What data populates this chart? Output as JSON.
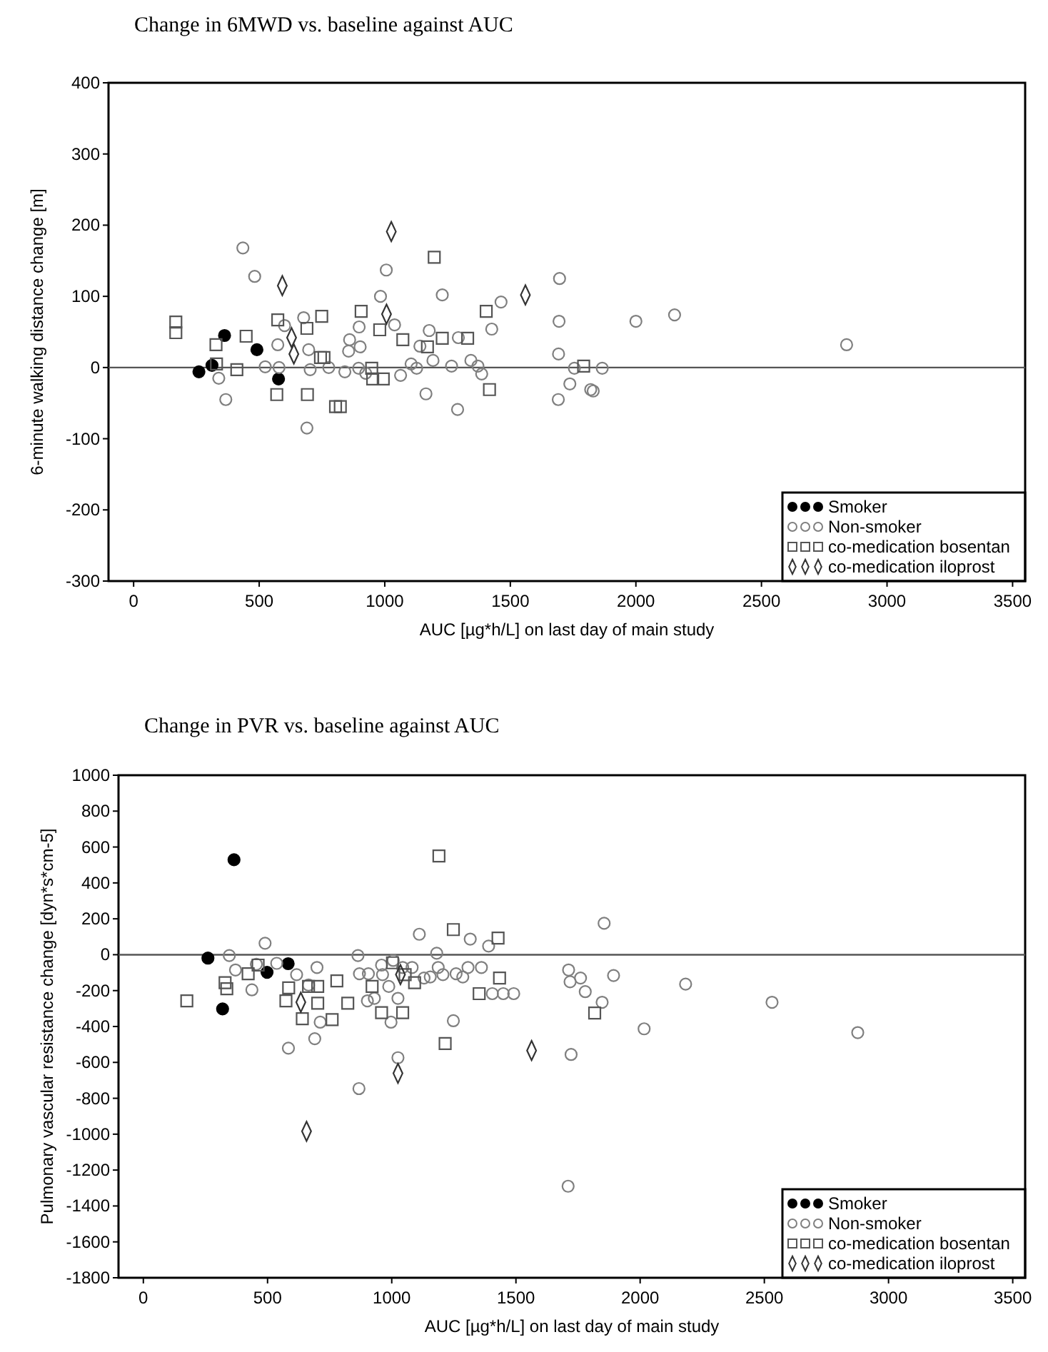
{
  "chart_data": [
    {
      "type": "scatter",
      "title": "Change in 6MWD vs. baseline against AUC",
      "xlabel": "AUC [µg*h/L] on last day of main study",
      "ylabel": "6-minute walking distance change [m]",
      "xlim": [
        -100,
        3550
      ],
      "ylim": [
        -300,
        400
      ],
      "xticks": [
        0,
        500,
        1000,
        1500,
        2000,
        2500,
        3000,
        3500
      ],
      "yticks": [
        -300,
        -200,
        -100,
        0,
        100,
        200,
        300,
        400
      ],
      "grid": false,
      "legend": "bottom right",
      "ref_lines": [
        {
          "axis": "y",
          "value": 0,
          "color": "#555555"
        }
      ],
      "series": [
        {
          "name": "Smoker",
          "color": "#000000",
          "marker": "circle",
          "x": [
            260,
            312,
            362,
            491,
            577
          ],
          "values": [
            -6,
            3,
            45,
            25,
            -16
          ]
        },
        {
          "name": "Non-smoker",
          "color": "#7f7f7f",
          "marker": "circle",
          "x": [
            435,
            482,
            367,
            339,
            524,
            574,
            579,
            601,
            677,
            697,
            703,
            690,
            777,
            841,
            860,
            856,
            902,
            898,
            896,
            924,
            983,
            1006,
            1039,
            1063,
            1105,
            1127,
            1140,
            1164,
            1177,
            1192,
            1229,
            1266,
            1290,
            1293,
            1343,
            1371,
            1386,
            1426,
            1463,
            1696,
            1694,
            2000,
            2154,
            2839,
            1692,
            1755,
            1866,
            1737,
            1820,
            1830,
            1691
          ],
          "values": [
            168,
            128,
            -45,
            -15,
            1,
            32,
            0,
            59,
            70,
            25,
            -3,
            -85,
            0,
            -6,
            39,
            23,
            29,
            57,
            -1,
            -8,
            100,
            137,
            60,
            -11,
            5,
            -1,
            30,
            -37,
            52,
            10,
            102,
            2,
            -59,
            42,
            10,
            2,
            -9,
            54,
            92,
            125,
            65,
            65,
            74,
            32,
            19,
            -1,
            -1,
            -23,
            -31,
            -33,
            -45
          ]
        },
        {
          "name": "co-medication bosentan",
          "color": "#555555",
          "marker": "square",
          "x": [
            168,
            168,
            328,
            330,
            448,
            411,
            574,
            570,
            690,
            692,
            749,
            758,
            744,
            804,
            823,
            906,
            948,
            952,
            994,
            980,
            1072,
            1170,
            1197,
            1229,
            1330,
            1404,
            1417,
            1792
          ],
          "values": [
            64,
            49,
            32,
            5,
            44,
            -3,
            67,
            -38,
            55,
            -38,
            72,
            14,
            14,
            -55,
            -55,
            79,
            -1,
            -16,
            -16,
            53,
            39,
            29,
            155,
            41,
            41,
            79,
            -31,
            2
          ]
        },
        {
          "name": "co-medication iloprost",
          "color": "#333333",
          "marker": "diamond",
          "x": [
            592,
            629,
            638,
            1026,
            1007,
            1560
          ],
          "values": [
            115,
            42,
            19,
            191,
            75,
            102
          ]
        }
      ]
    },
    {
      "type": "scatter",
      "title": "Change in PVR vs. baseline against AUC",
      "xlabel": "AUC [µg*h/L] on last day of main study",
      "ylabel": "Pulmonary vascular resistance change [dyn*s*cm-5]",
      "xlim": [
        -100,
        3550
      ],
      "ylim": [
        -1800,
        1000
      ],
      "xticks": [
        0,
        500,
        1000,
        1500,
        2000,
        2500,
        3000,
        3500
      ],
      "yticks": [
        -1800,
        -1600,
        -1400,
        -1200,
        -1000,
        -800,
        -600,
        -400,
        -200,
        0,
        200,
        400,
        600,
        800,
        1000
      ],
      "grid": false,
      "legend": "bottom right",
      "ref_lines": [
        {
          "axis": "y",
          "value": 0,
          "color": "#555555"
        }
      ],
      "series": [
        {
          "name": "Smoker",
          "color": "#000000",
          "marker": "circle",
          "x": [
            260,
            319,
            365,
            498,
            583
          ],
          "values": [
            -19,
            -302,
            529,
            -98,
            -50
          ]
        },
        {
          "name": "Non-smoker",
          "color": "#7f7f7f",
          "marker": "circle",
          "x": [
            346,
            371,
            437,
            490,
            455,
            537,
            584,
            617,
            665,
            699,
            712,
            690,
            864,
            870,
            906,
            902,
            930,
            868,
            959,
            963,
            988,
            997,
            1006,
            1025,
            1025,
            1044,
            1082,
            1111,
            1130,
            1155,
            1181,
            1187,
            1206,
            1248,
            1259,
            1286,
            1316,
            1307,
            1361,
            1390,
            1405,
            1449,
            1491,
            1855,
            1712,
            1718,
            1760,
            1779,
            1893,
            1847,
            2016,
            2183,
            2531,
            2876,
            1722,
            1710
          ],
          "values": [
            -5,
            -85,
            -196,
            64,
            -53,
            -48,
            -521,
            -111,
            -169,
            -71,
            -376,
            -468,
            -5,
            -106,
            -106,
            -257,
            -243,
            -746,
            -58,
            -111,
            -177,
            -376,
            -32,
            -243,
            -574,
            -71,
            -71,
            114,
            -130,
            -124,
            8,
            -71,
            -111,
            -368,
            -106,
            -124,
            87,
            -71,
            -71,
            48,
            -217,
            -217,
            -217,
            175,
            -85,
            -151,
            -130,
            -206,
            -116,
            -265,
            -413,
            -164,
            -265,
            -434,
            -556,
            -1290
          ]
        },
        {
          "name": "co-medication bosentan",
          "color": "#555555",
          "marker": "square",
          "x": [
            175,
            329,
            336,
            422,
            462,
            574,
            585,
            640,
            665,
            702,
            702,
            760,
            779,
            823,
            921,
            959,
            1003,
            1044,
            1054,
            1092,
            1190,
            1215,
            1248,
            1428,
            1434,
            1352,
            1817
          ],
          "values": [
            -257,
            -156,
            -190,
            -106,
            -58,
            -257,
            -185,
            -357,
            -177,
            -270,
            -177,
            -362,
            -146,
            -270,
            -177,
            -323,
            -45,
            -323,
            -111,
            -156,
            550,
            -495,
            140,
            93,
            -130,
            -217,
            -325
          ]
        },
        {
          "name": "co-medication iloprost",
          "color": "#333333",
          "marker": "diamond",
          "x": [
            657,
            634,
            1025,
            1035,
            1563
          ],
          "values": [
            -984,
            -265,
            -661,
            -111,
            -534
          ]
        }
      ]
    }
  ]
}
